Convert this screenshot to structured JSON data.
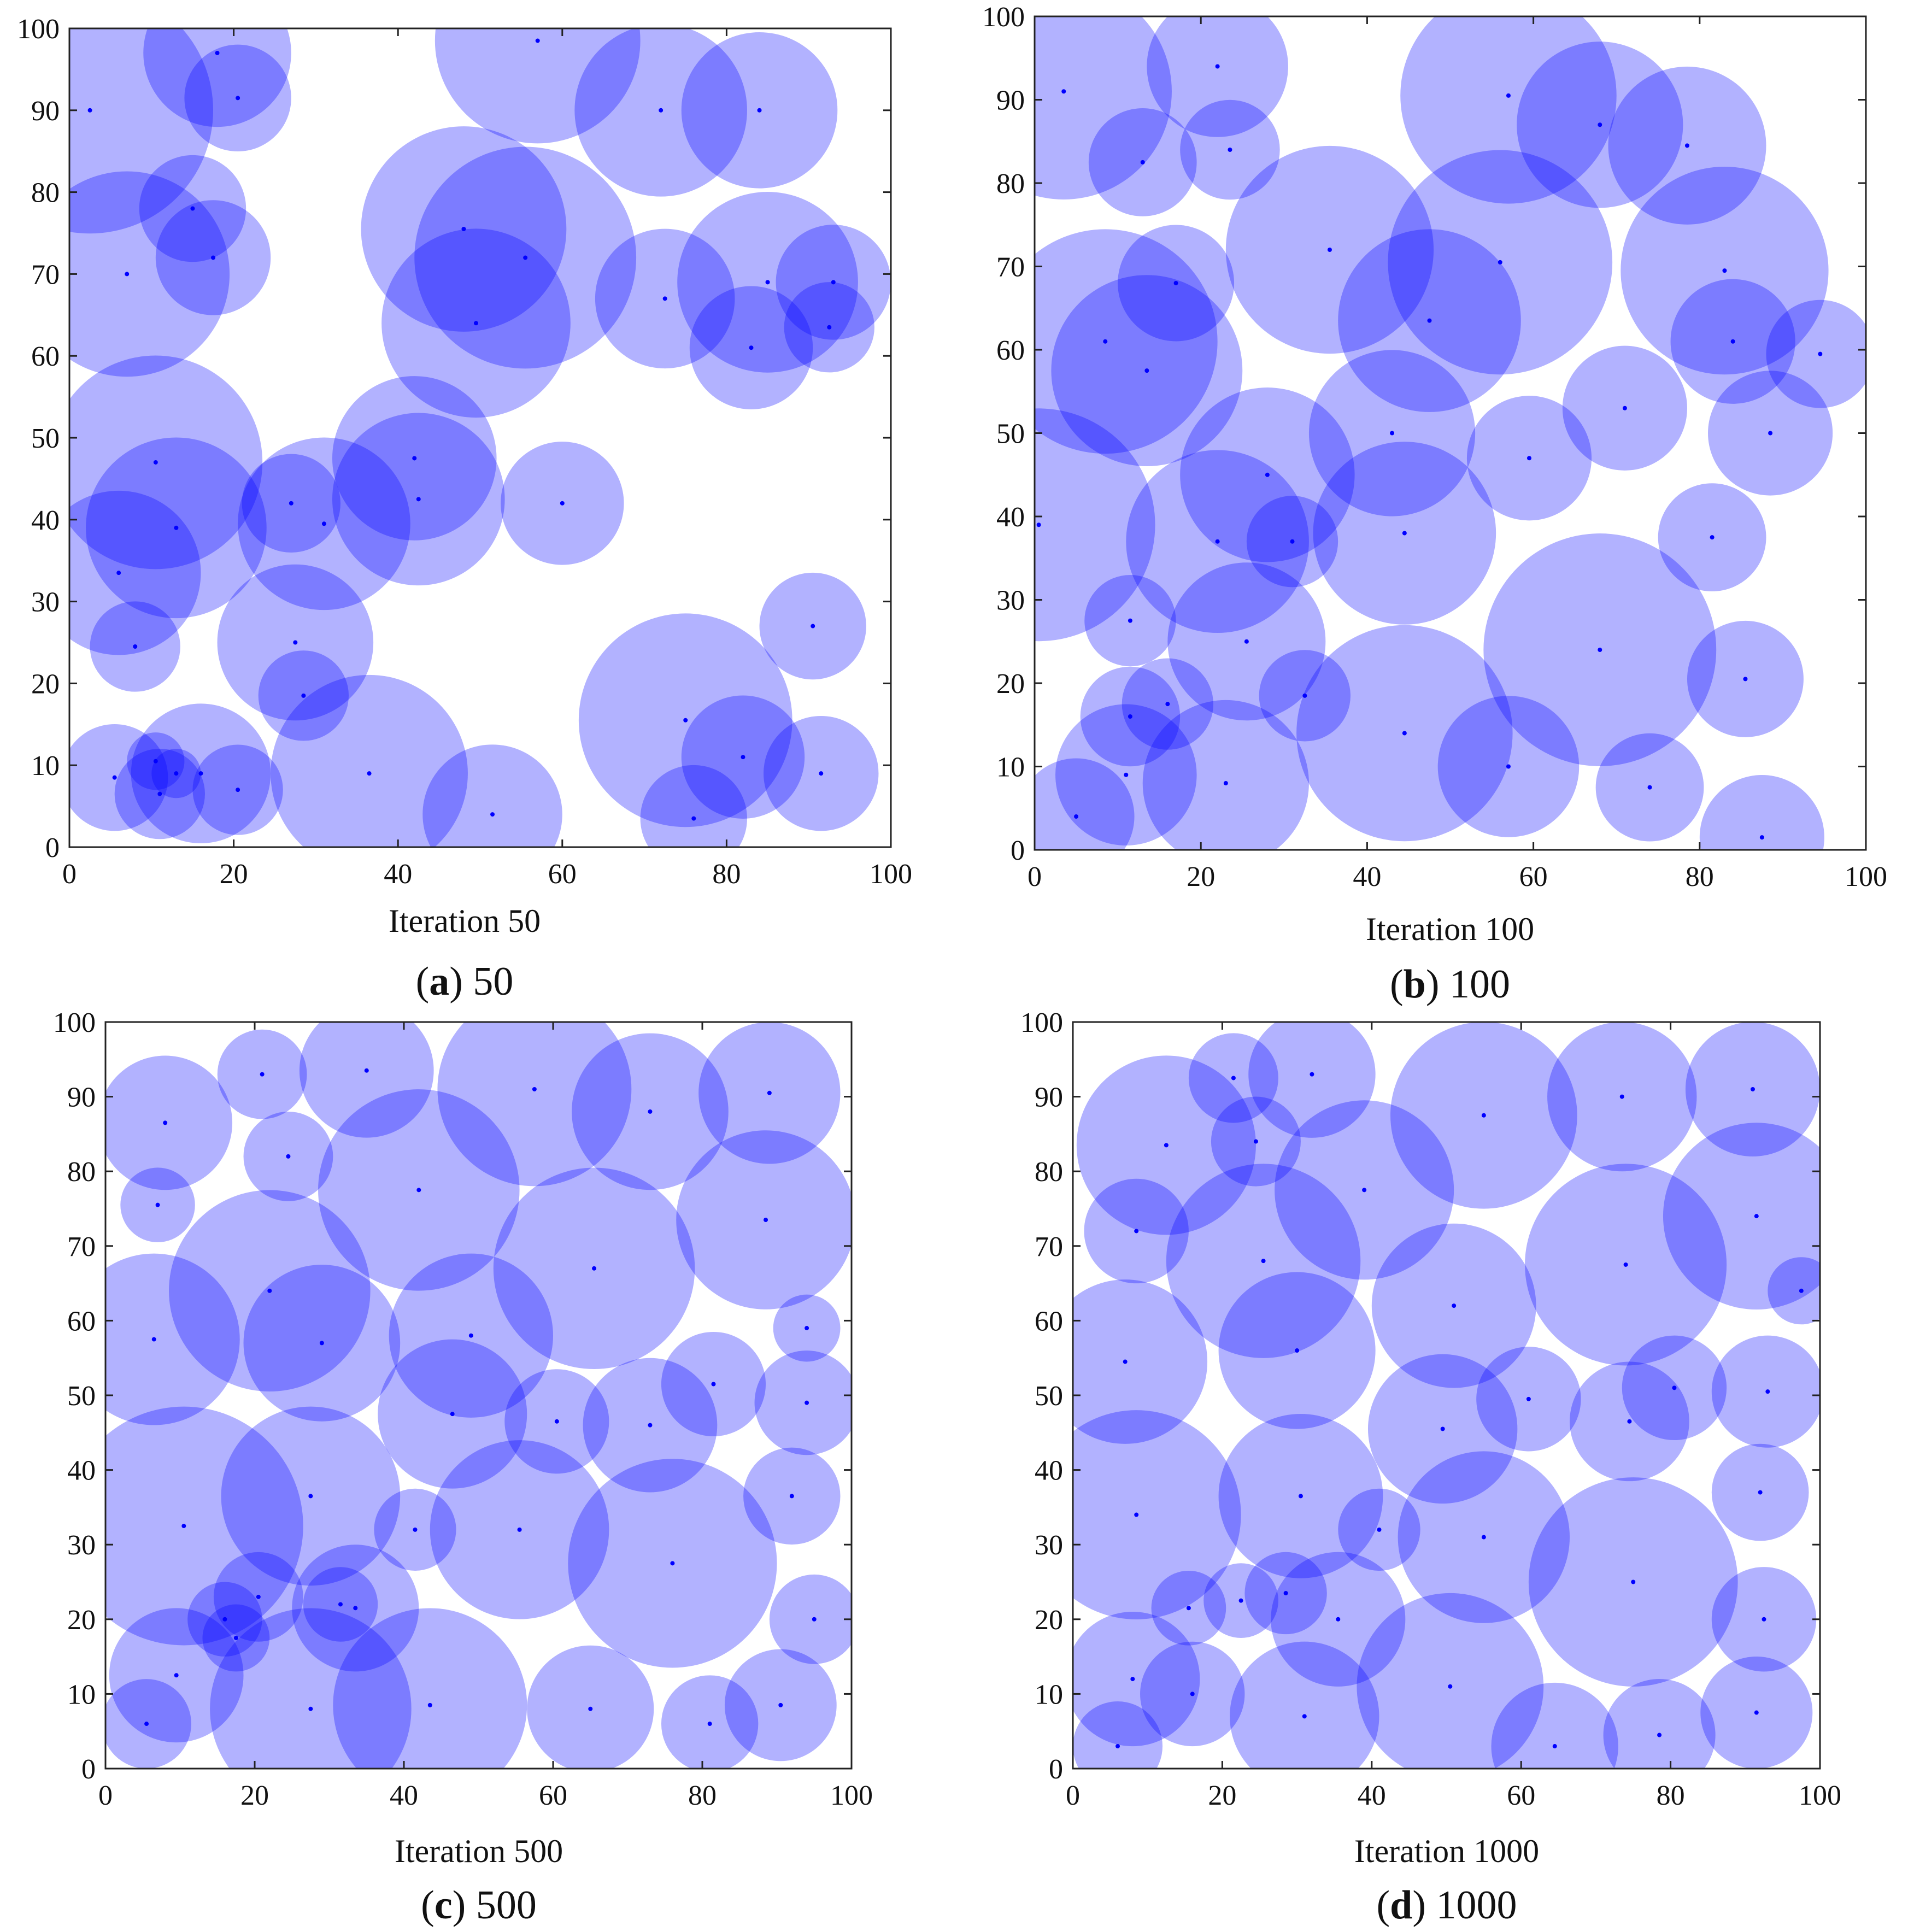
{
  "chart_data": [
    {
      "type": "scatter",
      "panel_letter": "a",
      "panel_value": "50",
      "xlabel": "Iteration 50",
      "ylabel": "",
      "xlim": [
        0,
        100
      ],
      "ylim": [
        0,
        100
      ],
      "xticks": [
        "0",
        "20",
        "40",
        "60",
        "80",
        "100"
      ],
      "yticks": [
        "0",
        "10",
        "20",
        "30",
        "40",
        "50",
        "60",
        "70",
        "80",
        "90",
        "100"
      ],
      "circles": [
        {
          "x": 2.5,
          "y": 90,
          "r": 15
        },
        {
          "x": 18,
          "y": 97,
          "r": 9
        },
        {
          "x": 20.5,
          "y": 91.5,
          "r": 6.5
        },
        {
          "x": 57,
          "y": 98.5,
          "r": 12.5
        },
        {
          "x": 72,
          "y": 90,
          "r": 10.5
        },
        {
          "x": 84,
          "y": 90,
          "r": 9.5
        },
        {
          "x": 15,
          "y": 78,
          "r": 6.5
        },
        {
          "x": 7,
          "y": 70,
          "r": 12.5
        },
        {
          "x": 17.5,
          "y": 72,
          "r": 7
        },
        {
          "x": 48,
          "y": 75.5,
          "r": 12.5
        },
        {
          "x": 55.5,
          "y": 72,
          "r": 13.5
        },
        {
          "x": 49.5,
          "y": 64,
          "r": 11.5
        },
        {
          "x": 72.5,
          "y": 67,
          "r": 8.5
        },
        {
          "x": 85,
          "y": 69,
          "r": 11
        },
        {
          "x": 83,
          "y": 61,
          "r": 7.5
        },
        {
          "x": 93,
          "y": 69,
          "r": 7
        },
        {
          "x": 92.5,
          "y": 63.5,
          "r": 5.5
        },
        {
          "x": 10.5,
          "y": 47,
          "r": 13
        },
        {
          "x": 13,
          "y": 39,
          "r": 11
        },
        {
          "x": 6,
          "y": 33.5,
          "r": 10
        },
        {
          "x": 42,
          "y": 47.5,
          "r": 10
        },
        {
          "x": 42.5,
          "y": 42.5,
          "r": 10.5
        },
        {
          "x": 27,
          "y": 42,
          "r": 6
        },
        {
          "x": 31,
          "y": 39.5,
          "r": 10.5
        },
        {
          "x": 60,
          "y": 42,
          "r": 7.5
        },
        {
          "x": 8,
          "y": 24.5,
          "r": 5.5
        },
        {
          "x": 27.5,
          "y": 25,
          "r": 9.5
        },
        {
          "x": 28.5,
          "y": 18.5,
          "r": 5.5
        },
        {
          "x": 90.5,
          "y": 27,
          "r": 6.5
        },
        {
          "x": 75,
          "y": 15.5,
          "r": 13
        },
        {
          "x": 82,
          "y": 11,
          "r": 7.5
        },
        {
          "x": 91.5,
          "y": 9,
          "r": 7
        },
        {
          "x": 76,
          "y": 3.5,
          "r": 6.5
        },
        {
          "x": 5.5,
          "y": 8.5,
          "r": 6.5
        },
        {
          "x": 10.5,
          "y": 10.5,
          "r": 3.5
        },
        {
          "x": 11,
          "y": 6.5,
          "r": 5.5
        },
        {
          "x": 13,
          "y": 9,
          "r": 3
        },
        {
          "x": 16,
          "y": 9,
          "r": 8.5
        },
        {
          "x": 20.5,
          "y": 7,
          "r": 5.5
        },
        {
          "x": 36.5,
          "y": 9,
          "r": 12
        },
        {
          "x": 51.5,
          "y": 4,
          "r": 8.5
        }
      ]
    },
    {
      "type": "scatter",
      "panel_letter": "b",
      "panel_value": "100",
      "xlabel": "Iteration 100",
      "ylabel": "",
      "xlim": [
        0,
        100
      ],
      "ylim": [
        0,
        100
      ],
      "xticks": [
        "0",
        "20",
        "40",
        "60",
        "80",
        "100"
      ],
      "yticks": [
        "0",
        "10",
        "20",
        "30",
        "40",
        "50",
        "60",
        "70",
        "80",
        "90",
        "100"
      ],
      "circles": [
        {
          "x": 3.5,
          "y": 91,
          "r": 13
        },
        {
          "x": 22,
          "y": 94,
          "r": 8.5
        },
        {
          "x": 13,
          "y": 82.5,
          "r": 6.5
        },
        {
          "x": 23.5,
          "y": 84,
          "r": 6
        },
        {
          "x": 57,
          "y": 90.5,
          "r": 13
        },
        {
          "x": 68,
          "y": 87,
          "r": 10
        },
        {
          "x": 78.5,
          "y": 84.5,
          "r": 9.5
        },
        {
          "x": 35.5,
          "y": 72,
          "r": 12.5
        },
        {
          "x": 56,
          "y": 70.5,
          "r": 13.5
        },
        {
          "x": 47.5,
          "y": 63.5,
          "r": 11
        },
        {
          "x": 83,
          "y": 69.5,
          "r": 12.5
        },
        {
          "x": 8.5,
          "y": 61,
          "r": 13.5
        },
        {
          "x": 17,
          "y": 68,
          "r": 7
        },
        {
          "x": 13.5,
          "y": 57.5,
          "r": 11.5
        },
        {
          "x": 84,
          "y": 61,
          "r": 7.5
        },
        {
          "x": 94.5,
          "y": 59.5,
          "r": 6.5
        },
        {
          "x": 88.5,
          "y": 50,
          "r": 7.5
        },
        {
          "x": 71,
          "y": 53,
          "r": 7.5
        },
        {
          "x": 59.5,
          "y": 47,
          "r": 7.5
        },
        {
          "x": 43,
          "y": 50,
          "r": 10
        },
        {
          "x": 28,
          "y": 45,
          "r": 10.5
        },
        {
          "x": 22,
          "y": 37,
          "r": 11
        },
        {
          "x": 0.5,
          "y": 39,
          "r": 14
        },
        {
          "x": 31,
          "y": 37,
          "r": 5.5
        },
        {
          "x": 44.5,
          "y": 38,
          "r": 11
        },
        {
          "x": 81.5,
          "y": 37.5,
          "r": 6.5
        },
        {
          "x": 11.5,
          "y": 27.5,
          "r": 5.5
        },
        {
          "x": 25.5,
          "y": 25,
          "r": 9.5
        },
        {
          "x": 68,
          "y": 24,
          "r": 14
        },
        {
          "x": 85.5,
          "y": 20.5,
          "r": 7
        },
        {
          "x": 11.5,
          "y": 16,
          "r": 6
        },
        {
          "x": 16,
          "y": 17.5,
          "r": 5.5
        },
        {
          "x": 32.5,
          "y": 18.5,
          "r": 5.5
        },
        {
          "x": 44.5,
          "y": 14,
          "r": 13
        },
        {
          "x": 11,
          "y": 9,
          "r": 8.5
        },
        {
          "x": 5,
          "y": 4,
          "r": 7
        },
        {
          "x": 23,
          "y": 8,
          "r": 10
        },
        {
          "x": 57,
          "y": 10,
          "r": 8.5
        },
        {
          "x": 74,
          "y": 7.5,
          "r": 6.5
        },
        {
          "x": 87.5,
          "y": 1.5,
          "r": 7.5
        }
      ]
    },
    {
      "type": "scatter",
      "panel_letter": "c",
      "panel_value": "500",
      "xlabel": "Iteration 500",
      "ylabel": "",
      "xlim": [
        0,
        100
      ],
      "ylim": [
        0,
        100
      ],
      "xticks": [
        "0",
        "20",
        "40",
        "60",
        "80",
        "100"
      ],
      "yticks": [
        "0",
        "10",
        "20",
        "30",
        "40",
        "50",
        "60",
        "70",
        "80",
        "90",
        "100"
      ],
      "circles": [
        {
          "x": 8,
          "y": 86.5,
          "r": 9
        },
        {
          "x": 21,
          "y": 93,
          "r": 6
        },
        {
          "x": 35,
          "y": 93.5,
          "r": 9
        },
        {
          "x": 57.5,
          "y": 91,
          "r": 13
        },
        {
          "x": 73,
          "y": 88,
          "r": 10.5
        },
        {
          "x": 89,
          "y": 90.5,
          "r": 9.5
        },
        {
          "x": 7,
          "y": 75.5,
          "r": 5
        },
        {
          "x": 24.5,
          "y": 82,
          "r": 6
        },
        {
          "x": 42,
          "y": 77.5,
          "r": 13.5
        },
        {
          "x": 88.5,
          "y": 73.5,
          "r": 12
        },
        {
          "x": 65.5,
          "y": 67,
          "r": 13.5
        },
        {
          "x": 22,
          "y": 64,
          "r": 13.5
        },
        {
          "x": 29,
          "y": 57,
          "r": 10.5
        },
        {
          "x": 49,
          "y": 58,
          "r": 11
        },
        {
          "x": 6.5,
          "y": 57.5,
          "r": 11.5
        },
        {
          "x": 94,
          "y": 59,
          "r": 4.5
        },
        {
          "x": 46.5,
          "y": 47.5,
          "r": 10
        },
        {
          "x": 60.5,
          "y": 46.5,
          "r": 7
        },
        {
          "x": 73,
          "y": 46,
          "r": 9
        },
        {
          "x": 81.5,
          "y": 51.5,
          "r": 7
        },
        {
          "x": 94,
          "y": 49,
          "r": 7
        },
        {
          "x": 10.5,
          "y": 32.5,
          "r": 16
        },
        {
          "x": 27.5,
          "y": 36.5,
          "r": 12
        },
        {
          "x": 41.5,
          "y": 32,
          "r": 5.5
        },
        {
          "x": 55.5,
          "y": 32,
          "r": 12
        },
        {
          "x": 76,
          "y": 27.5,
          "r": 14
        },
        {
          "x": 92,
          "y": 36.5,
          "r": 6.5
        },
        {
          "x": 16,
          "y": 20,
          "r": 5
        },
        {
          "x": 20.5,
          "y": 23,
          "r": 6
        },
        {
          "x": 33.5,
          "y": 21.5,
          "r": 8.5
        },
        {
          "x": 31.5,
          "y": 22,
          "r": 5
        },
        {
          "x": 17.5,
          "y": 17.5,
          "r": 4.5
        },
        {
          "x": 95,
          "y": 20,
          "r": 6
        },
        {
          "x": 9.5,
          "y": 12.5,
          "r": 9
        },
        {
          "x": 27.5,
          "y": 8,
          "r": 13.5
        },
        {
          "x": 43.5,
          "y": 8.5,
          "r": 13
        },
        {
          "x": 65,
          "y": 8,
          "r": 8.5
        },
        {
          "x": 81,
          "y": 6,
          "r": 6.5
        },
        {
          "x": 90.5,
          "y": 8.5,
          "r": 7.5
        },
        {
          "x": 5.5,
          "y": 6,
          "r": 6
        }
      ]
    },
    {
      "type": "scatter",
      "panel_letter": "d",
      "panel_value": "1000",
      "xlabel": "Iteration 1000",
      "ylabel": "",
      "xlim": [
        0,
        100
      ],
      "ylim": [
        0,
        100
      ],
      "xticks": [
        "0",
        "20",
        "40",
        "60",
        "80",
        "100"
      ],
      "yticks": [
        "0",
        "10",
        "20",
        "30",
        "40",
        "50",
        "60",
        "70",
        "80",
        "90",
        "100"
      ],
      "circles": [
        {
          "x": 12.5,
          "y": 83.5,
          "r": 12
        },
        {
          "x": 21.5,
          "y": 92.5,
          "r": 6
        },
        {
          "x": 32,
          "y": 93,
          "r": 8.5
        },
        {
          "x": 55,
          "y": 87.5,
          "r": 12.5
        },
        {
          "x": 73.5,
          "y": 90,
          "r": 10
        },
        {
          "x": 91,
          "y": 91,
          "r": 9
        },
        {
          "x": 24.5,
          "y": 84,
          "r": 6
        },
        {
          "x": 39,
          "y": 77.5,
          "r": 12
        },
        {
          "x": 8.5,
          "y": 72,
          "r": 7
        },
        {
          "x": 25.5,
          "y": 68,
          "r": 13
        },
        {
          "x": 74,
          "y": 67.5,
          "r": 13.5
        },
        {
          "x": 91.5,
          "y": 74,
          "r": 12.5
        },
        {
          "x": 97.5,
          "y": 64,
          "r": 4.5
        },
        {
          "x": 51,
          "y": 62,
          "r": 11
        },
        {
          "x": 30,
          "y": 56,
          "r": 10.5
        },
        {
          "x": 7,
          "y": 54.5,
          "r": 11
        },
        {
          "x": 61,
          "y": 49.5,
          "r": 7
        },
        {
          "x": 74.5,
          "y": 46.5,
          "r": 8
        },
        {
          "x": 80.5,
          "y": 51,
          "r": 7
        },
        {
          "x": 93,
          "y": 50.5,
          "r": 7.5
        },
        {
          "x": 49.5,
          "y": 45.5,
          "r": 10
        },
        {
          "x": 8.5,
          "y": 34,
          "r": 14
        },
        {
          "x": 30.5,
          "y": 36.5,
          "r": 11
        },
        {
          "x": 41,
          "y": 32,
          "r": 5.5
        },
        {
          "x": 55,
          "y": 31,
          "r": 11.5
        },
        {
          "x": 75,
          "y": 25,
          "r": 14
        },
        {
          "x": 92,
          "y": 37,
          "r": 6.5
        },
        {
          "x": 15.5,
          "y": 21.5,
          "r": 5
        },
        {
          "x": 22.5,
          "y": 22.5,
          "r": 5
        },
        {
          "x": 28.5,
          "y": 23.5,
          "r": 5.5
        },
        {
          "x": 35.5,
          "y": 20,
          "r": 9
        },
        {
          "x": 92.5,
          "y": 20,
          "r": 7
        },
        {
          "x": 8,
          "y": 12,
          "r": 9
        },
        {
          "x": 16,
          "y": 10,
          "r": 7
        },
        {
          "x": 31,
          "y": 7,
          "r": 10
        },
        {
          "x": 50.5,
          "y": 11,
          "r": 12.5
        },
        {
          "x": 64.5,
          "y": 3,
          "r": 8.5
        },
        {
          "x": 78.5,
          "y": 4.5,
          "r": 7.5
        },
        {
          "x": 91.5,
          "y": 7.5,
          "r": 7.5
        },
        {
          "x": 6,
          "y": 3,
          "r": 6
        }
      ]
    }
  ]
}
